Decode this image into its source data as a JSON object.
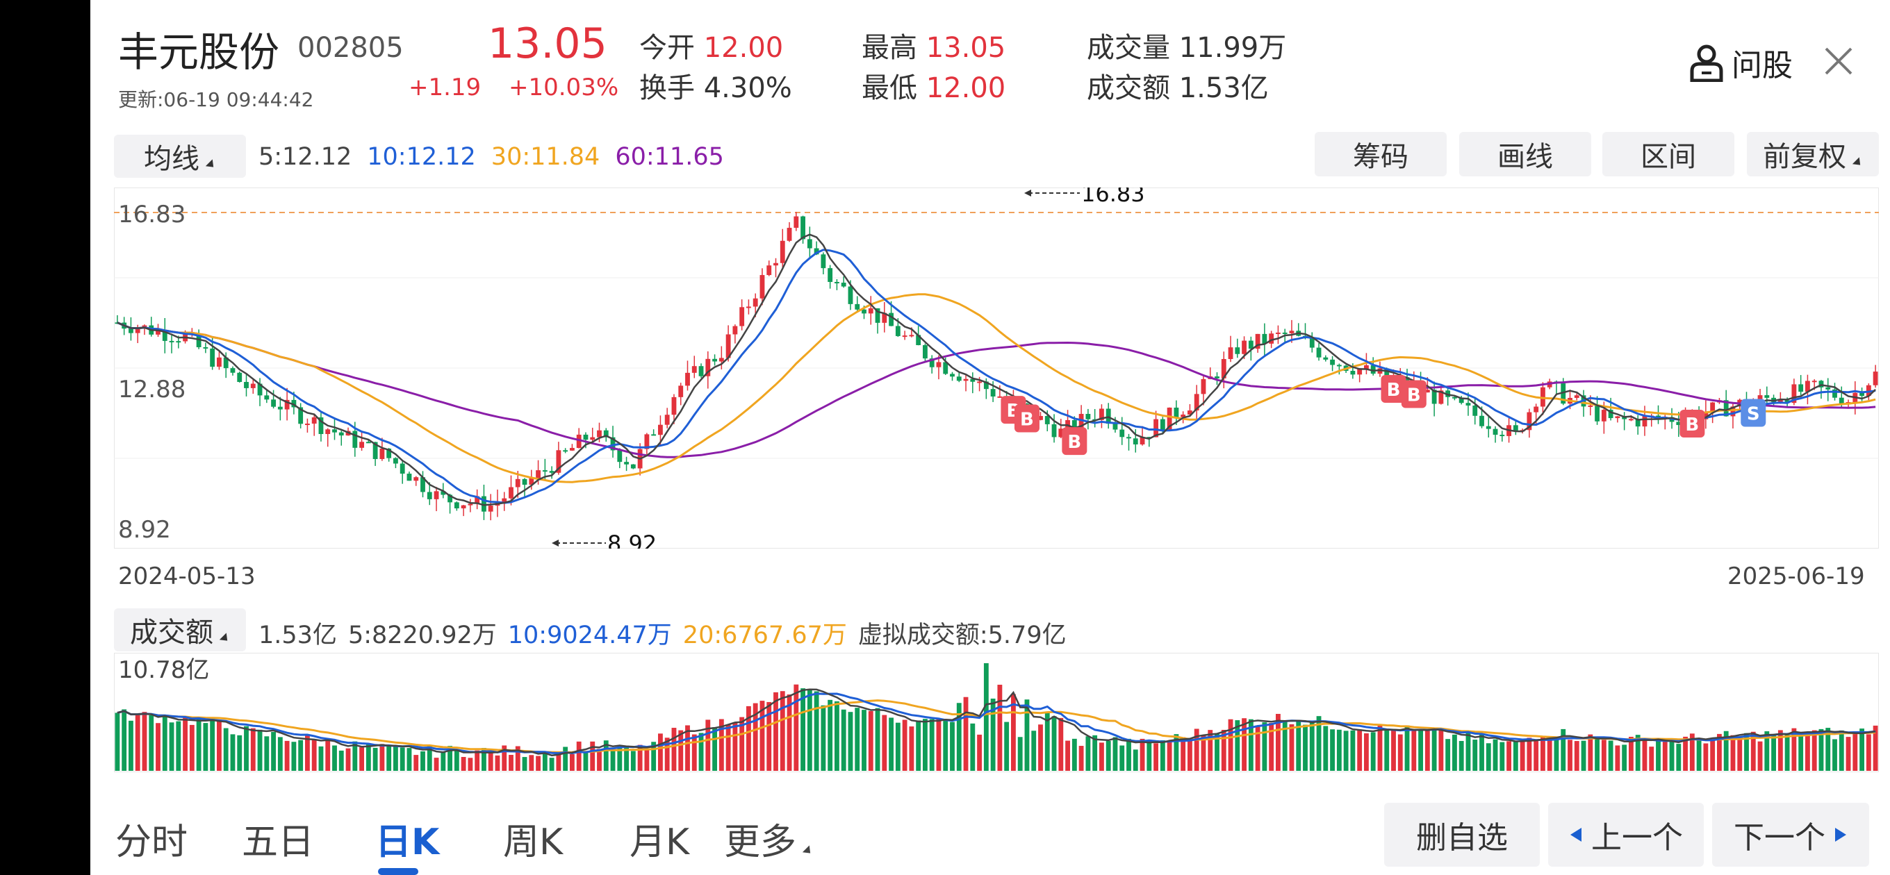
{
  "header": {
    "name": "丰元股份",
    "code": "002805",
    "updated": "更新:06-19 09:44:42",
    "price": "13.05",
    "change": "+1.19",
    "change_pct": "+10.03%",
    "stats": [
      {
        "label": "今开",
        "value": "12.00",
        "color": "#e2323c"
      },
      {
        "label": "换手",
        "value": "4.30%",
        "color": "#333333"
      },
      {
        "label": "最高",
        "value": "13.05",
        "color": "#e2323c"
      },
      {
        "label": "最低",
        "value": "12.00",
        "color": "#e2323c"
      },
      {
        "label": "成交量",
        "value": "11.99万",
        "color": "#333333"
      },
      {
        "label": "成交额",
        "value": "1.53亿",
        "color": "#333333"
      }
    ],
    "ask_label": "问股"
  },
  "ma_bar": {
    "selector": "均线",
    "items": [
      {
        "text": "5:12.12",
        "color": "#444444"
      },
      {
        "text": "10:12.12",
        "color": "#1f5fd6"
      },
      {
        "text": "30:11.84",
        "color": "#f0a520"
      },
      {
        "text": "60:11.65",
        "color": "#8a1ea8"
      }
    ],
    "buttons": [
      "筹码",
      "画线",
      "区间",
      "前复权"
    ]
  },
  "kline": {
    "axis_high": "16.83",
    "axis_mid": "12.88",
    "axis_low": "8.92",
    "max_marker": "16.83",
    "min_marker": "8.92",
    "date_start": "2024-05-13",
    "date_end": "2025-06-19",
    "signals": [
      "B",
      "B",
      "B",
      "B",
      "B",
      "B",
      "S"
    ]
  },
  "volume_bar": {
    "selector": "成交额",
    "items": [
      {
        "text": "1.53亿",
        "color": "#444444"
      },
      {
        "text": "5:8220.92万",
        "color": "#444444"
      },
      {
        "text": "10:9024.47万",
        "color": "#1f5fd6"
      },
      {
        "text": "20:6767.67万",
        "color": "#f0a520"
      },
      {
        "text": "虚拟成交额:5.79亿",
        "color": "#444444"
      }
    ],
    "axis_high": "10.78亿"
  },
  "tabs": [
    "分时",
    "五日",
    "日K",
    "周K",
    "月K",
    "更多"
  ],
  "active_tab": "日K",
  "actions": [
    "删自选",
    "上一个",
    "下一个"
  ],
  "colors": {
    "up": "#e2323c",
    "down": "#0f9d58",
    "ma5": "#444444",
    "ma10": "#1f5fd6",
    "ma30": "#f0a520",
    "ma60": "#8a1ea8"
  }
}
